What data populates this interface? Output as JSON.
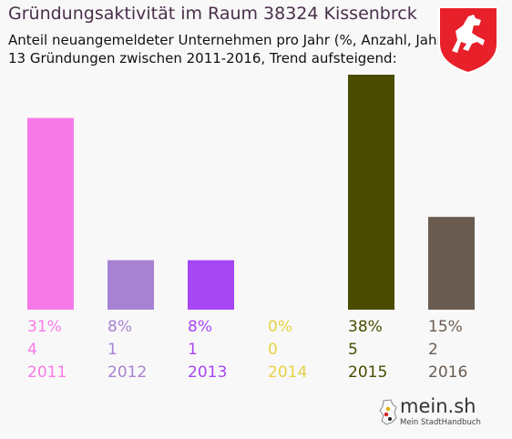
{
  "header": {
    "title": "Gründungsaktivität im Raum 38324 Kissenbrck",
    "subtitle_line1": "Anteil neuangemeldeter Unternehmen pro Jahr (%, Anzahl, Jahr)",
    "subtitle_line2": "13 Gründungen zwischen 2011-2016, Trend aufsteigend:"
  },
  "emblem": {
    "icon": "lower-saxony-horse-crest-icon",
    "colors": [
      "#e8202a",
      "#ffffff"
    ]
  },
  "brand": {
    "name": "mein.sh",
    "tagline": "Mein StadtHandbuch"
  },
  "chart_data": {
    "type": "bar",
    "categories": [
      "2011",
      "2012",
      "2013",
      "2014",
      "2015",
      "2016"
    ],
    "percent_labels": [
      "31%",
      "8%",
      "8%",
      "0%",
      "38%",
      "15%"
    ],
    "values": [
      31,
      8,
      8,
      0,
      38,
      15
    ],
    "counts": [
      4,
      1,
      1,
      0,
      5,
      2
    ],
    "colors": [
      "#f87ae8",
      "#a882d2",
      "#a746f3",
      "#e7d243",
      "#4a4c00",
      "#6a5c50"
    ],
    "ylim": [
      0,
      38
    ],
    "grid": false
  }
}
